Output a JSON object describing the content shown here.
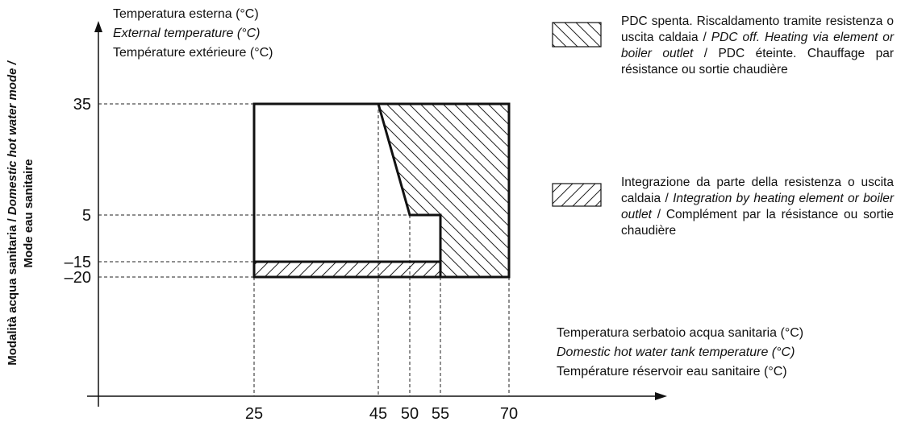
{
  "y_axis": {
    "title_lines": [
      "Temperatura esterna (°C)",
      "External temperature (°C)",
      "Température extérieure (°C)"
    ],
    "ticks": [
      35,
      5,
      "–15",
      "–20"
    ],
    "side_label": {
      "line1": [
        "Modalità acqua sanitaria /",
        "Domestic hot water mode /"
      ],
      "line2": "Mode eau sanitaire"
    }
  },
  "x_axis": {
    "title_lines": [
      "Temperatura serbatoio acqua sanitaria (°C)",
      "Domestic hot water tank temperature (°C)",
      "Température réservoir eau sanitaire (°C)"
    ],
    "ticks": [
      25,
      45,
      50,
      55,
      70
    ]
  },
  "legend": [
    {
      "segments": [
        "PDC spenta. Riscaldamento tramite resistenza o uscita caldaia /",
        "PDC off. Heating via element or boiler outlet",
        "/ PDC éteinte. Chauffage par résistance ou sortie chaudière"
      ]
    },
    {
      "segments": [
        "Integrazione da parte della resistenza o uscita caldaia /",
        "Integration by heating element or boiler outlet",
        "/ Complément par la résistance ou sortie chaudière"
      ]
    }
  ]
}
